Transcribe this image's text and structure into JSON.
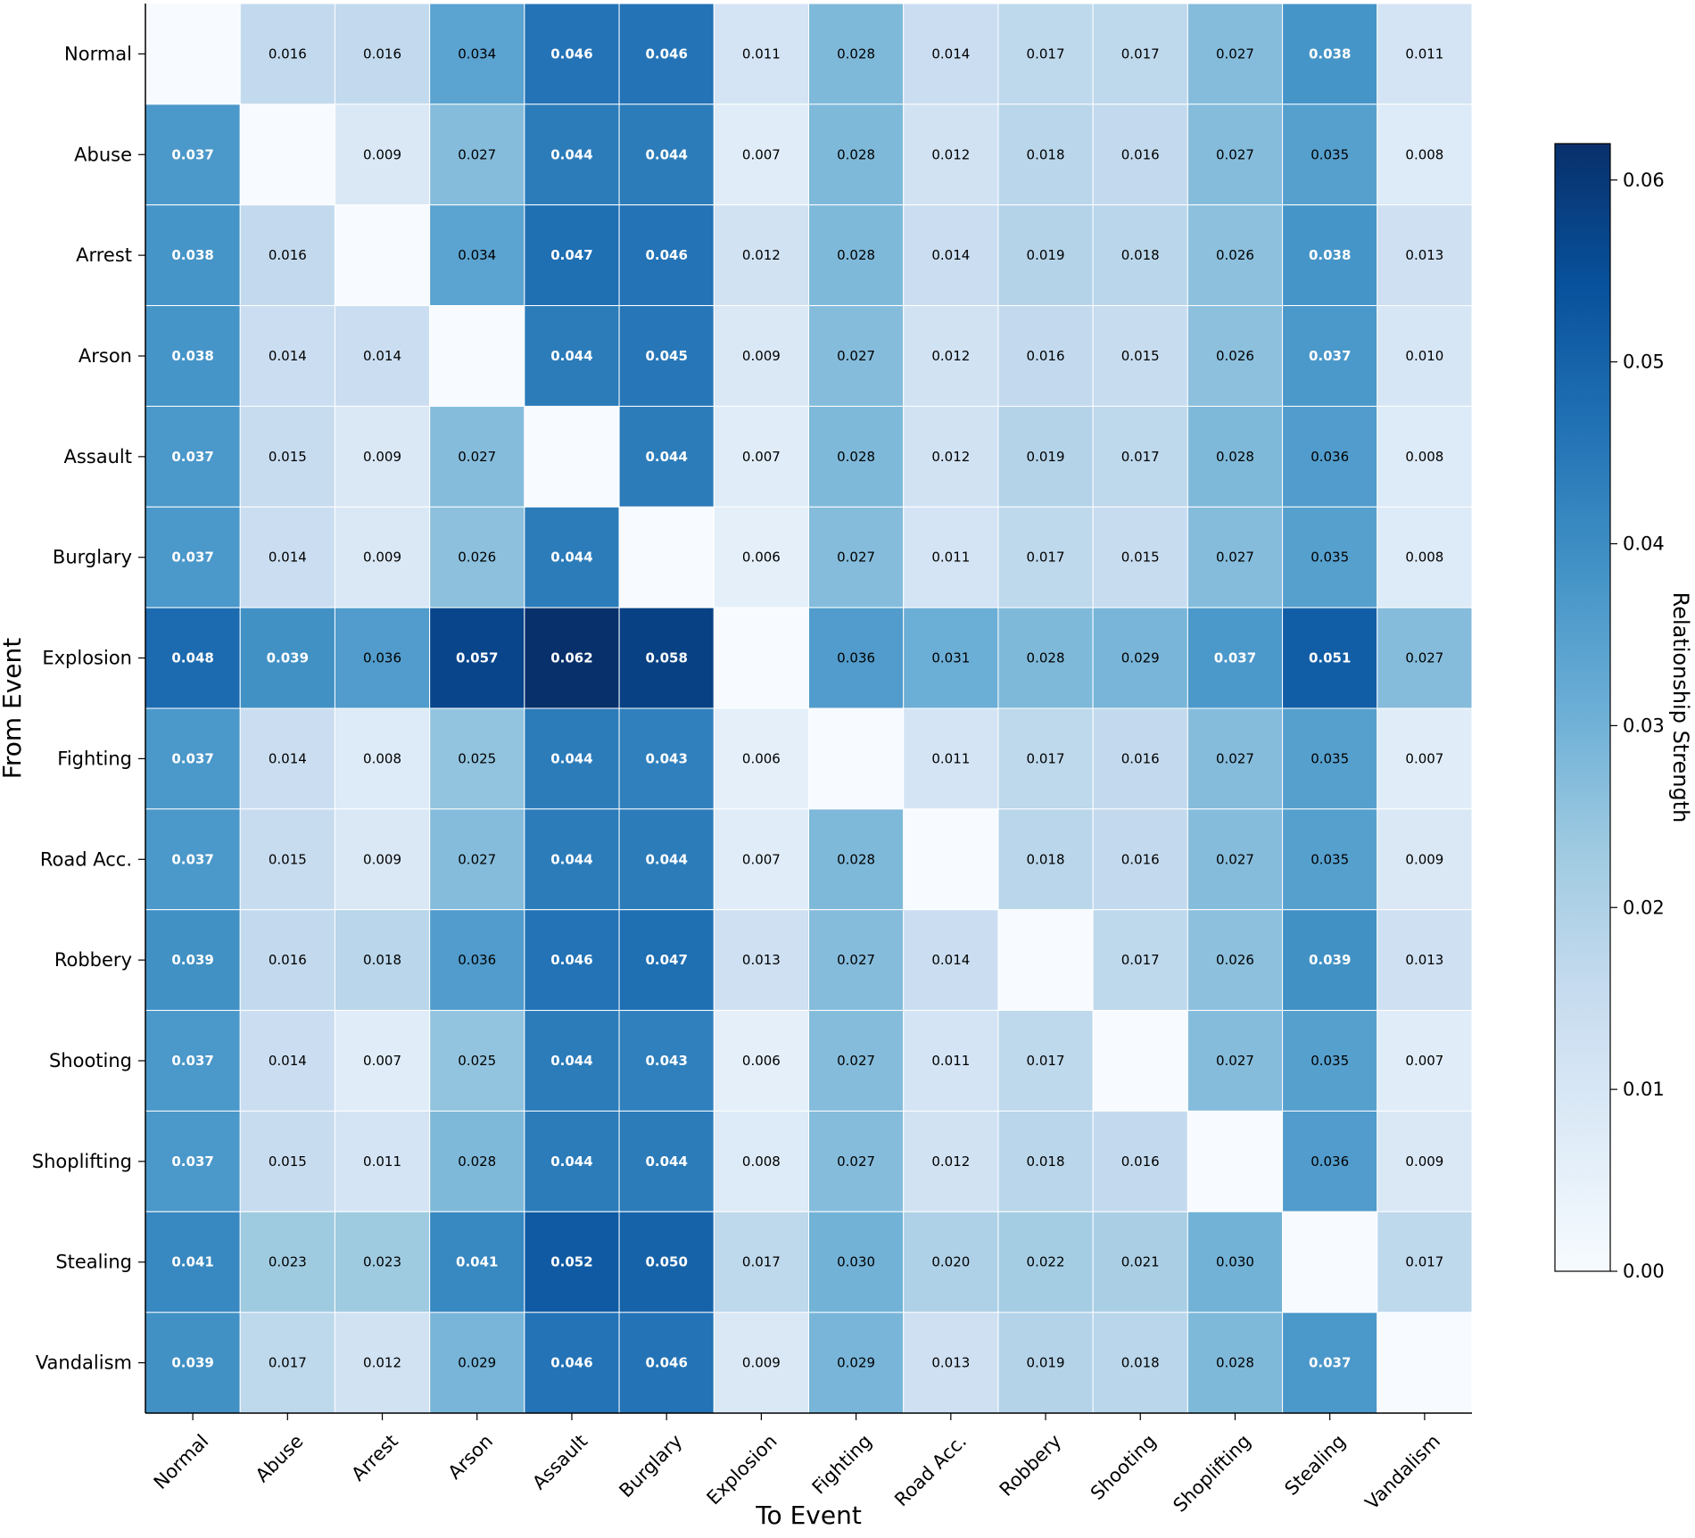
{
  "chart_data": {
    "type": "heatmap",
    "title": "",
    "xlabel": "To Event",
    "ylabel": "From Event",
    "colorbar_label": "Relationship Strength",
    "colorbar_range": [
      0,
      0.062
    ],
    "colorbar_ticks": [
      "0.00",
      "0.01",
      "0.02",
      "0.03",
      "0.04",
      "0.05",
      "0.06"
    ],
    "colormap": "Blues",
    "x_categories": [
      "Normal",
      "Abuse",
      "Arrest",
      "Arson",
      "Assault",
      "Burglary",
      "Explosion",
      "Fighting",
      "Road Acc.",
      "Robbery",
      "Shooting",
      "Shoplifting",
      "Stealing",
      "Vandalism"
    ],
    "y_categories": [
      "Normal",
      "Abuse",
      "Arrest",
      "Arson",
      "Assault",
      "Burglary",
      "Explosion",
      "Fighting",
      "Road Acc.",
      "Robbery",
      "Shooting",
      "Shoplifting",
      "Stealing",
      "Vandalism"
    ],
    "values": [
      [
        null,
        0.016,
        0.016,
        0.034,
        0.046,
        0.046,
        0.011,
        0.028,
        0.014,
        0.017,
        0.017,
        0.027,
        0.038,
        0.011
      ],
      [
        0.037,
        null,
        0.009,
        0.027,
        0.044,
        0.044,
        0.007,
        0.028,
        0.012,
        0.018,
        0.016,
        0.027,
        0.035,
        0.008
      ],
      [
        0.038,
        0.016,
        null,
        0.034,
        0.047,
        0.046,
        0.012,
        0.028,
        0.014,
        0.019,
        0.018,
        0.026,
        0.038,
        0.013
      ],
      [
        0.038,
        0.014,
        0.014,
        null,
        0.044,
        0.045,
        0.009,
        0.027,
        0.012,
        0.016,
        0.015,
        0.026,
        0.037,
        0.01
      ],
      [
        0.037,
        0.015,
        0.009,
        0.027,
        null,
        0.044,
        0.007,
        0.028,
        0.012,
        0.019,
        0.017,
        0.028,
        0.036,
        0.008
      ],
      [
        0.037,
        0.014,
        0.009,
        0.026,
        0.044,
        null,
        0.006,
        0.027,
        0.011,
        0.017,
        0.015,
        0.027,
        0.035,
        0.008
      ],
      [
        0.048,
        0.039,
        0.036,
        0.057,
        0.062,
        0.058,
        null,
        0.036,
        0.031,
        0.028,
        0.029,
        0.037,
        0.051,
        0.027
      ],
      [
        0.037,
        0.014,
        0.008,
        0.025,
        0.044,
        0.043,
        0.006,
        null,
        0.011,
        0.017,
        0.016,
        0.027,
        0.035,
        0.007
      ],
      [
        0.037,
        0.015,
        0.009,
        0.027,
        0.044,
        0.044,
        0.007,
        0.028,
        null,
        0.018,
        0.016,
        0.027,
        0.035,
        0.009
      ],
      [
        0.039,
        0.016,
        0.018,
        0.036,
        0.046,
        0.047,
        0.013,
        0.027,
        0.014,
        null,
        0.017,
        0.026,
        0.039,
        0.013
      ],
      [
        0.037,
        0.014,
        0.007,
        0.025,
        0.044,
        0.043,
        0.006,
        0.027,
        0.011,
        0.017,
        null,
        0.027,
        0.035,
        0.007
      ],
      [
        0.037,
        0.015,
        0.011,
        0.028,
        0.044,
        0.044,
        0.008,
        0.027,
        0.012,
        0.018,
        0.016,
        null,
        0.036,
        0.009
      ],
      [
        0.041,
        0.023,
        0.023,
        0.041,
        0.052,
        0.05,
        0.017,
        0.03,
        0.02,
        0.022,
        0.021,
        0.03,
        null,
        0.017
      ],
      [
        0.039,
        0.017,
        0.012,
        0.029,
        0.046,
        0.046,
        0.009,
        0.029,
        0.013,
        0.019,
        0.018,
        0.028,
        0.037,
        null
      ]
    ],
    "annotation_threshold": 0.037
  }
}
